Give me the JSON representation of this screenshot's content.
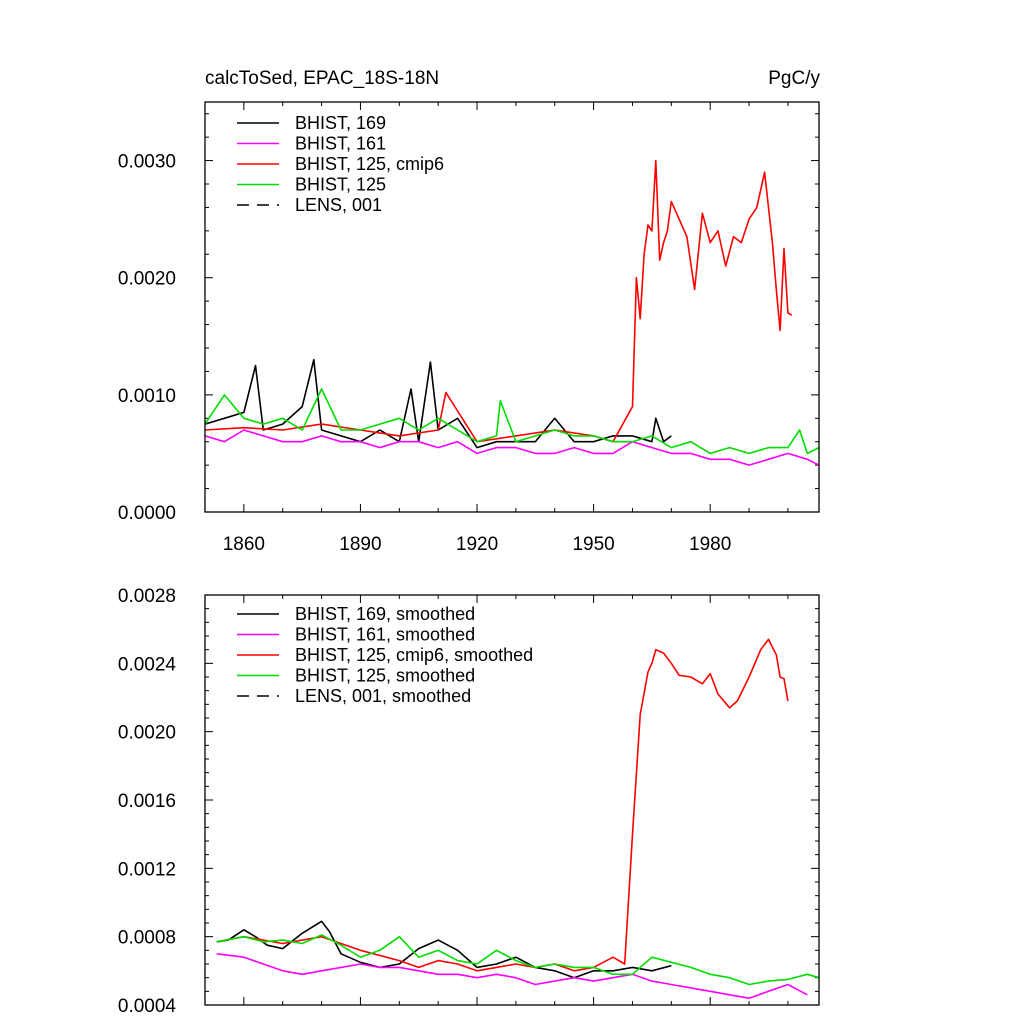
{
  "top": {
    "title_left": "calcToSed, EPAC_18S-18N",
    "title_right": "PgC/y",
    "x_ticks": [
      "1860",
      "1890",
      "1920",
      "1950",
      "1980"
    ],
    "y_ticks": [
      "0.0000",
      "0.0010",
      "0.0020",
      "0.0030"
    ],
    "legend": [
      {
        "label": "BHIST, 169",
        "color": "#000000",
        "dash": false
      },
      {
        "label": "BHIST, 161",
        "color": "#ff00ff",
        "dash": false
      },
      {
        "label": "BHIST, 125, cmip6",
        "color": "#ff0000",
        "dash": false
      },
      {
        "label": "BHIST, 125",
        "color": "#00dd00",
        "dash": false
      },
      {
        "label": "LENS, 001",
        "color": "#000000",
        "dash": true
      }
    ]
  },
  "bottom": {
    "y_ticks": [
      "0.0004",
      "0.0008",
      "0.0012",
      "0.0016",
      "0.0020",
      "0.0024",
      "0.0028"
    ],
    "legend": [
      {
        "label": "BHIST, 169, smoothed",
        "color": "#000000",
        "dash": false
      },
      {
        "label": "BHIST, 161, smoothed",
        "color": "#ff00ff",
        "dash": false
      },
      {
        "label": "BHIST, 125, cmip6, smoothed",
        "color": "#ff0000",
        "dash": false
      },
      {
        "label": "BHIST, 125, smoothed",
        "color": "#00dd00",
        "dash": false
      },
      {
        "label": "LENS, 001, smoothed",
        "color": "#000000",
        "dash": true
      }
    ]
  },
  "chart_data": [
    {
      "type": "line",
      "title": "calcToSed, EPAC_18S-18N",
      "ylabel": "PgC/y",
      "xlim": [
        1850,
        2008
      ],
      "ylim": [
        0,
        0.0035
      ],
      "grid": false,
      "legend_position": "top-left",
      "series": [
        {
          "name": "BHIST, 169",
          "color": "#000000",
          "x": [
            1850,
            1855,
            1860,
            1863,
            1865,
            1870,
            1875,
            1878,
            1880,
            1885,
            1890,
            1895,
            1900,
            1903,
            1905,
            1908,
            1910,
            1915,
            1920,
            1925,
            1930,
            1935,
            1940,
            1945,
            1950,
            1955,
            1960,
            1965,
            1966,
            1968,
            1970
          ],
          "y": [
            0.00075,
            0.0008,
            0.00085,
            0.00125,
            0.0007,
            0.00075,
            0.0009,
            0.0013,
            0.0007,
            0.00065,
            0.0006,
            0.0007,
            0.0006,
            0.00105,
            0.0006,
            0.00128,
            0.0007,
            0.0008,
            0.00055,
            0.0006,
            0.0006,
            0.0006,
            0.0008,
            0.0006,
            0.0006,
            0.00065,
            0.00065,
            0.0006,
            0.0008,
            0.0006,
            0.00065
          ]
        },
        {
          "name": "BHIST, 161",
          "color": "#ff00ff",
          "x": [
            1850,
            1855,
            1860,
            1865,
            1870,
            1875,
            1880,
            1885,
            1890,
            1895,
            1900,
            1905,
            1910,
            1915,
            1920,
            1925,
            1930,
            1935,
            1940,
            1945,
            1950,
            1955,
            1960,
            1965,
            1970,
            1975,
            1980,
            1985,
            1990,
            1995,
            2000,
            2005,
            2008
          ],
          "y": [
            0.00065,
            0.0006,
            0.0007,
            0.00065,
            0.0006,
            0.0006,
            0.00065,
            0.0006,
            0.0006,
            0.00055,
            0.0006,
            0.0006,
            0.00055,
            0.0006,
            0.0005,
            0.00055,
            0.00055,
            0.0005,
            0.0005,
            0.00055,
            0.0005,
            0.0005,
            0.0006,
            0.00055,
            0.0005,
            0.0005,
            0.00045,
            0.00045,
            0.0004,
            0.00045,
            0.0005,
            0.00045,
            0.0004
          ]
        },
        {
          "name": "BHIST, 125, cmip6",
          "color": "#ff0000",
          "x": [
            1850,
            1860,
            1870,
            1880,
            1890,
            1900,
            1910,
            1912,
            1920,
            1930,
            1940,
            1950,
            1955,
            1960,
            1961,
            1962,
            1963,
            1964,
            1965,
            1966,
            1967,
            1968,
            1969,
            1970,
            1972,
            1974,
            1976,
            1978,
            1980,
            1982,
            1984,
            1986,
            1988,
            1990,
            1992,
            1994,
            1996,
            1997,
            1998,
            1999,
            2000,
            2001
          ],
          "y": [
            0.0007,
            0.00072,
            0.0007,
            0.00075,
            0.0007,
            0.00065,
            0.0007,
            0.00102,
            0.0006,
            0.00065,
            0.0007,
            0.00065,
            0.0006,
            0.0009,
            0.002,
            0.00165,
            0.0022,
            0.00245,
            0.0024,
            0.003,
            0.00215,
            0.0023,
            0.0024,
            0.00265,
            0.0025,
            0.00235,
            0.0019,
            0.00255,
            0.0023,
            0.0024,
            0.0021,
            0.00235,
            0.0023,
            0.0025,
            0.0026,
            0.0029,
            0.0023,
            0.0019,
            0.00155,
            0.00225,
            0.0017,
            0.00168
          ]
        },
        {
          "name": "BHIST, 125",
          "color": "#00dd00",
          "x": [
            1850,
            1855,
            1860,
            1865,
            1870,
            1875,
            1880,
            1885,
            1890,
            1895,
            1900,
            1905,
            1910,
            1915,
            1920,
            1925,
            1926,
            1930,
            1935,
            1940,
            1945,
            1950,
            1955,
            1960,
            1965,
            1970,
            1975,
            1980,
            1985,
            1990,
            1995,
            2000,
            2003,
            2005,
            2008
          ],
          "y": [
            0.00075,
            0.001,
            0.0008,
            0.00075,
            0.0008,
            0.0007,
            0.00105,
            0.0007,
            0.0007,
            0.00075,
            0.0008,
            0.0007,
            0.0008,
            0.0007,
            0.0006,
            0.00065,
            0.00095,
            0.0006,
            0.00065,
            0.0007,
            0.00065,
            0.00065,
            0.0006,
            0.0006,
            0.00065,
            0.00055,
            0.0006,
            0.0005,
            0.00055,
            0.0005,
            0.00055,
            0.00055,
            0.0007,
            0.0005,
            0.00055
          ]
        },
        {
          "name": "LENS, 001",
          "color": "#000000",
          "dash": true,
          "x": [],
          "y": []
        }
      ]
    },
    {
      "type": "line",
      "xlim": [
        1850,
        2008
      ],
      "ylim": [
        0.0004,
        0.0028
      ],
      "grid": false,
      "legend_position": "top-left",
      "series": [
        {
          "name": "BHIST, 169, smoothed",
          "color": "#000000",
          "x": [
            1853,
            1856,
            1860,
            1863,
            1866,
            1870,
            1875,
            1880,
            1882,
            1885,
            1890,
            1895,
            1900,
            1905,
            1910,
            1915,
            1920,
            1925,
            1930,
            1935,
            1940,
            1945,
            1950,
            1955,
            1960,
            1965,
            1970
          ],
          "y": [
            0.00077,
            0.00078,
            0.00084,
            0.0008,
            0.00075,
            0.00073,
            0.00082,
            0.00089,
            0.00083,
            0.0007,
            0.00065,
            0.00062,
            0.00064,
            0.00073,
            0.00078,
            0.00072,
            0.00062,
            0.00064,
            0.00068,
            0.00062,
            0.0006,
            0.00056,
            0.0006,
            0.0006,
            0.00062,
            0.0006,
            0.00063
          ]
        },
        {
          "name": "BHIST, 161, smoothed",
          "color": "#ff00ff",
          "x": [
            1853,
            1860,
            1865,
            1870,
            1875,
            1880,
            1885,
            1890,
            1895,
            1900,
            1905,
            1910,
            1915,
            1920,
            1925,
            1930,
            1935,
            1940,
            1945,
            1950,
            1955,
            1960,
            1965,
            1970,
            1975,
            1980,
            1985,
            1990,
            1995,
            2000,
            2005
          ],
          "y": [
            0.0007,
            0.00068,
            0.00064,
            0.0006,
            0.00058,
            0.0006,
            0.00062,
            0.00064,
            0.00062,
            0.00062,
            0.0006,
            0.00058,
            0.00058,
            0.00056,
            0.00058,
            0.00056,
            0.00052,
            0.00054,
            0.00056,
            0.00054,
            0.00056,
            0.00058,
            0.00054,
            0.00052,
            0.0005,
            0.00048,
            0.00046,
            0.00044,
            0.00048,
            0.00052,
            0.00046
          ]
        },
        {
          "name": "BHIST, 125, cmip6, smoothed",
          "color": "#ff0000",
          "x": [
            1853,
            1860,
            1870,
            1880,
            1890,
            1900,
            1905,
            1910,
            1915,
            1920,
            1925,
            1930,
            1935,
            1940,
            1945,
            1950,
            1955,
            1958,
            1960,
            1962,
            1964,
            1965,
            1966,
            1968,
            1970,
            1972,
            1975,
            1978,
            1980,
            1982,
            1985,
            1987,
            1990,
            1993,
            1995,
            1997,
            1998,
            1999,
            2000
          ],
          "y": [
            0.00077,
            0.0008,
            0.00076,
            0.0008,
            0.00072,
            0.00066,
            0.00062,
            0.00066,
            0.00064,
            0.0006,
            0.00062,
            0.00064,
            0.00062,
            0.00064,
            0.0006,
            0.00062,
            0.00068,
            0.00064,
            0.0014,
            0.0021,
            0.00235,
            0.0024,
            0.00248,
            0.00246,
            0.0024,
            0.00233,
            0.00232,
            0.00228,
            0.00234,
            0.00222,
            0.00214,
            0.00218,
            0.00232,
            0.00248,
            0.00254,
            0.00245,
            0.00232,
            0.00231,
            0.00218
          ]
        },
        {
          "name": "BHIST, 125, smoothed",
          "color": "#00dd00",
          "x": [
            1853,
            1860,
            1865,
            1870,
            1875,
            1880,
            1885,
            1890,
            1895,
            1900,
            1905,
            1910,
            1915,
            1920,
            1925,
            1930,
            1935,
            1940,
            1945,
            1950,
            1955,
            1960,
            1965,
            1970,
            1975,
            1980,
            1985,
            1990,
            1995,
            2000,
            2005,
            2008
          ],
          "y": [
            0.00077,
            0.0008,
            0.00077,
            0.00078,
            0.00076,
            0.00081,
            0.00075,
            0.00068,
            0.00072,
            0.0008,
            0.00068,
            0.00072,
            0.00066,
            0.00064,
            0.00072,
            0.00066,
            0.00062,
            0.00064,
            0.00062,
            0.00062,
            0.00058,
            0.00058,
            0.00068,
            0.00065,
            0.00062,
            0.00058,
            0.00056,
            0.00052,
            0.00054,
            0.00055,
            0.00058,
            0.00056
          ]
        },
        {
          "name": "LENS, 001, smoothed",
          "color": "#000000",
          "dash": true,
          "x": [],
          "y": []
        }
      ]
    }
  ]
}
